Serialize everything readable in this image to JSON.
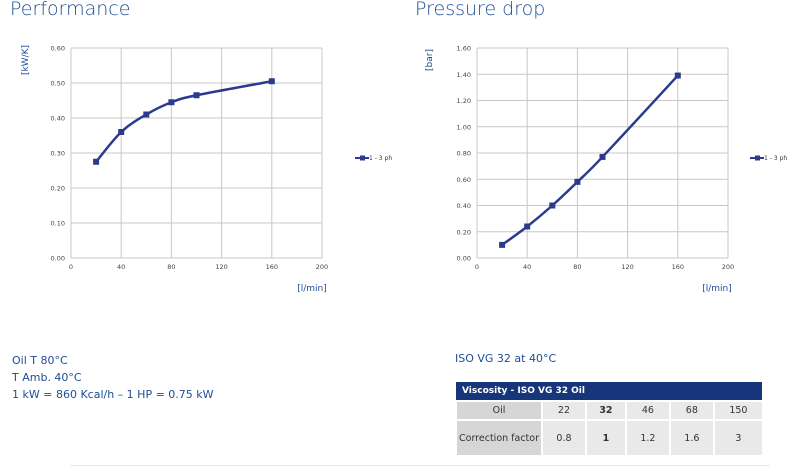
{
  "chart_data": [
    {
      "type": "line",
      "title": "Performance",
      "ylabel": "[kW/K]",
      "xlabel": "[l/min]",
      "x_ticks": [
        0,
        40,
        80,
        120,
        160,
        200
      ],
      "y_ticks": [
        "0.00",
        "0.10",
        "0.20",
        "0.30",
        "0.40",
        "0.50",
        "0.60"
      ],
      "xlim": [
        0,
        200
      ],
      "ylim": [
        0,
        0.6
      ],
      "grid": true,
      "legend_position": "right",
      "series": [
        {
          "name": "1 - 3 ph",
          "x": [
            20,
            40,
            60,
            80,
            100,
            160
          ],
          "y": [
            0.275,
            0.36,
            0.41,
            0.445,
            0.465,
            0.505
          ]
        }
      ]
    },
    {
      "type": "line",
      "title": "Pressure drop",
      "ylabel": "[bar]",
      "xlabel": "[l/min]",
      "x_ticks": [
        0,
        40,
        80,
        120,
        160,
        200
      ],
      "y_ticks": [
        "0.00",
        "0.20",
        "0.40",
        "0.60",
        "0.80",
        "1.00",
        "1.20",
        "1.40",
        "1.60"
      ],
      "xlim": [
        0,
        200
      ],
      "ylim": [
        0,
        1.6
      ],
      "grid": true,
      "legend_position": "right",
      "series": [
        {
          "name": "1 - 3 ph",
          "x": [
            20,
            40,
            60,
            80,
            100,
            160
          ],
          "y": [
            0.1,
            0.24,
            0.4,
            0.58,
            0.77,
            1.39
          ]
        }
      ]
    }
  ],
  "colors": {
    "series": "#2b3a8c",
    "grid": "#c8c8c8",
    "header": "#17357a"
  },
  "notes": [
    "Oil T 80°C",
    "T Amb. 40°C",
    "1 kW = 860 Kcal/h – 1 HP = 0.75 kW"
  ],
  "iso_caption": "ISO VG 32 at 40°C",
  "viscosity_table": {
    "title": "Viscosity - ISO VG 32 Oil",
    "rows": [
      {
        "label": "Oil",
        "values": [
          "22",
          "32",
          "46",
          "68",
          "150"
        ]
      },
      {
        "label": "Correction factor",
        "values": [
          "0.8",
          "1",
          "1.2",
          "1.6",
          "3"
        ]
      }
    ]
  }
}
